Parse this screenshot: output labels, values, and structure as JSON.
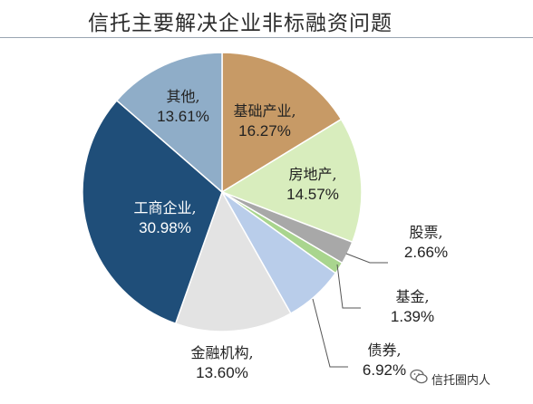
{
  "title": "信托主要解决企业非标融资问题",
  "watermark": "信托圈内人",
  "chart_data": {
    "type": "pie",
    "title": "信托主要解决企业非标融资问题",
    "unit": "%",
    "start_angle_deg": 0,
    "direction": "clockwise",
    "slices": [
      {
        "label": "基础产业",
        "value": 16.27,
        "display": "16.27%",
        "color": "#c79a66",
        "label_style": "inside"
      },
      {
        "label": "房地产",
        "value": 14.57,
        "display": "14.57%",
        "color": "#d8edbd",
        "label_style": "inside"
      },
      {
        "label": "股票",
        "value": 2.66,
        "display": "2.66%",
        "color": "#a8a8a8",
        "label_style": "leader"
      },
      {
        "label": "基金",
        "value": 1.39,
        "display": "1.39%",
        "color": "#a9d58e",
        "label_style": "leader"
      },
      {
        "label": "债券",
        "value": 6.92,
        "display": "6.92%",
        "color": "#b9cdea",
        "label_style": "leader"
      },
      {
        "label": "金融机构",
        "value": 13.6,
        "display": "13.60%",
        "color": "#e3e3e3",
        "label_style": "outside"
      },
      {
        "label": "工商企业",
        "value": 30.98,
        "display": "30.98%",
        "color": "#1f4e79",
        "label_style": "inside-light"
      },
      {
        "label": "其他",
        "value": 13.61,
        "display": "13.61%",
        "color": "#8fadc8",
        "label_style": "inside"
      }
    ]
  }
}
